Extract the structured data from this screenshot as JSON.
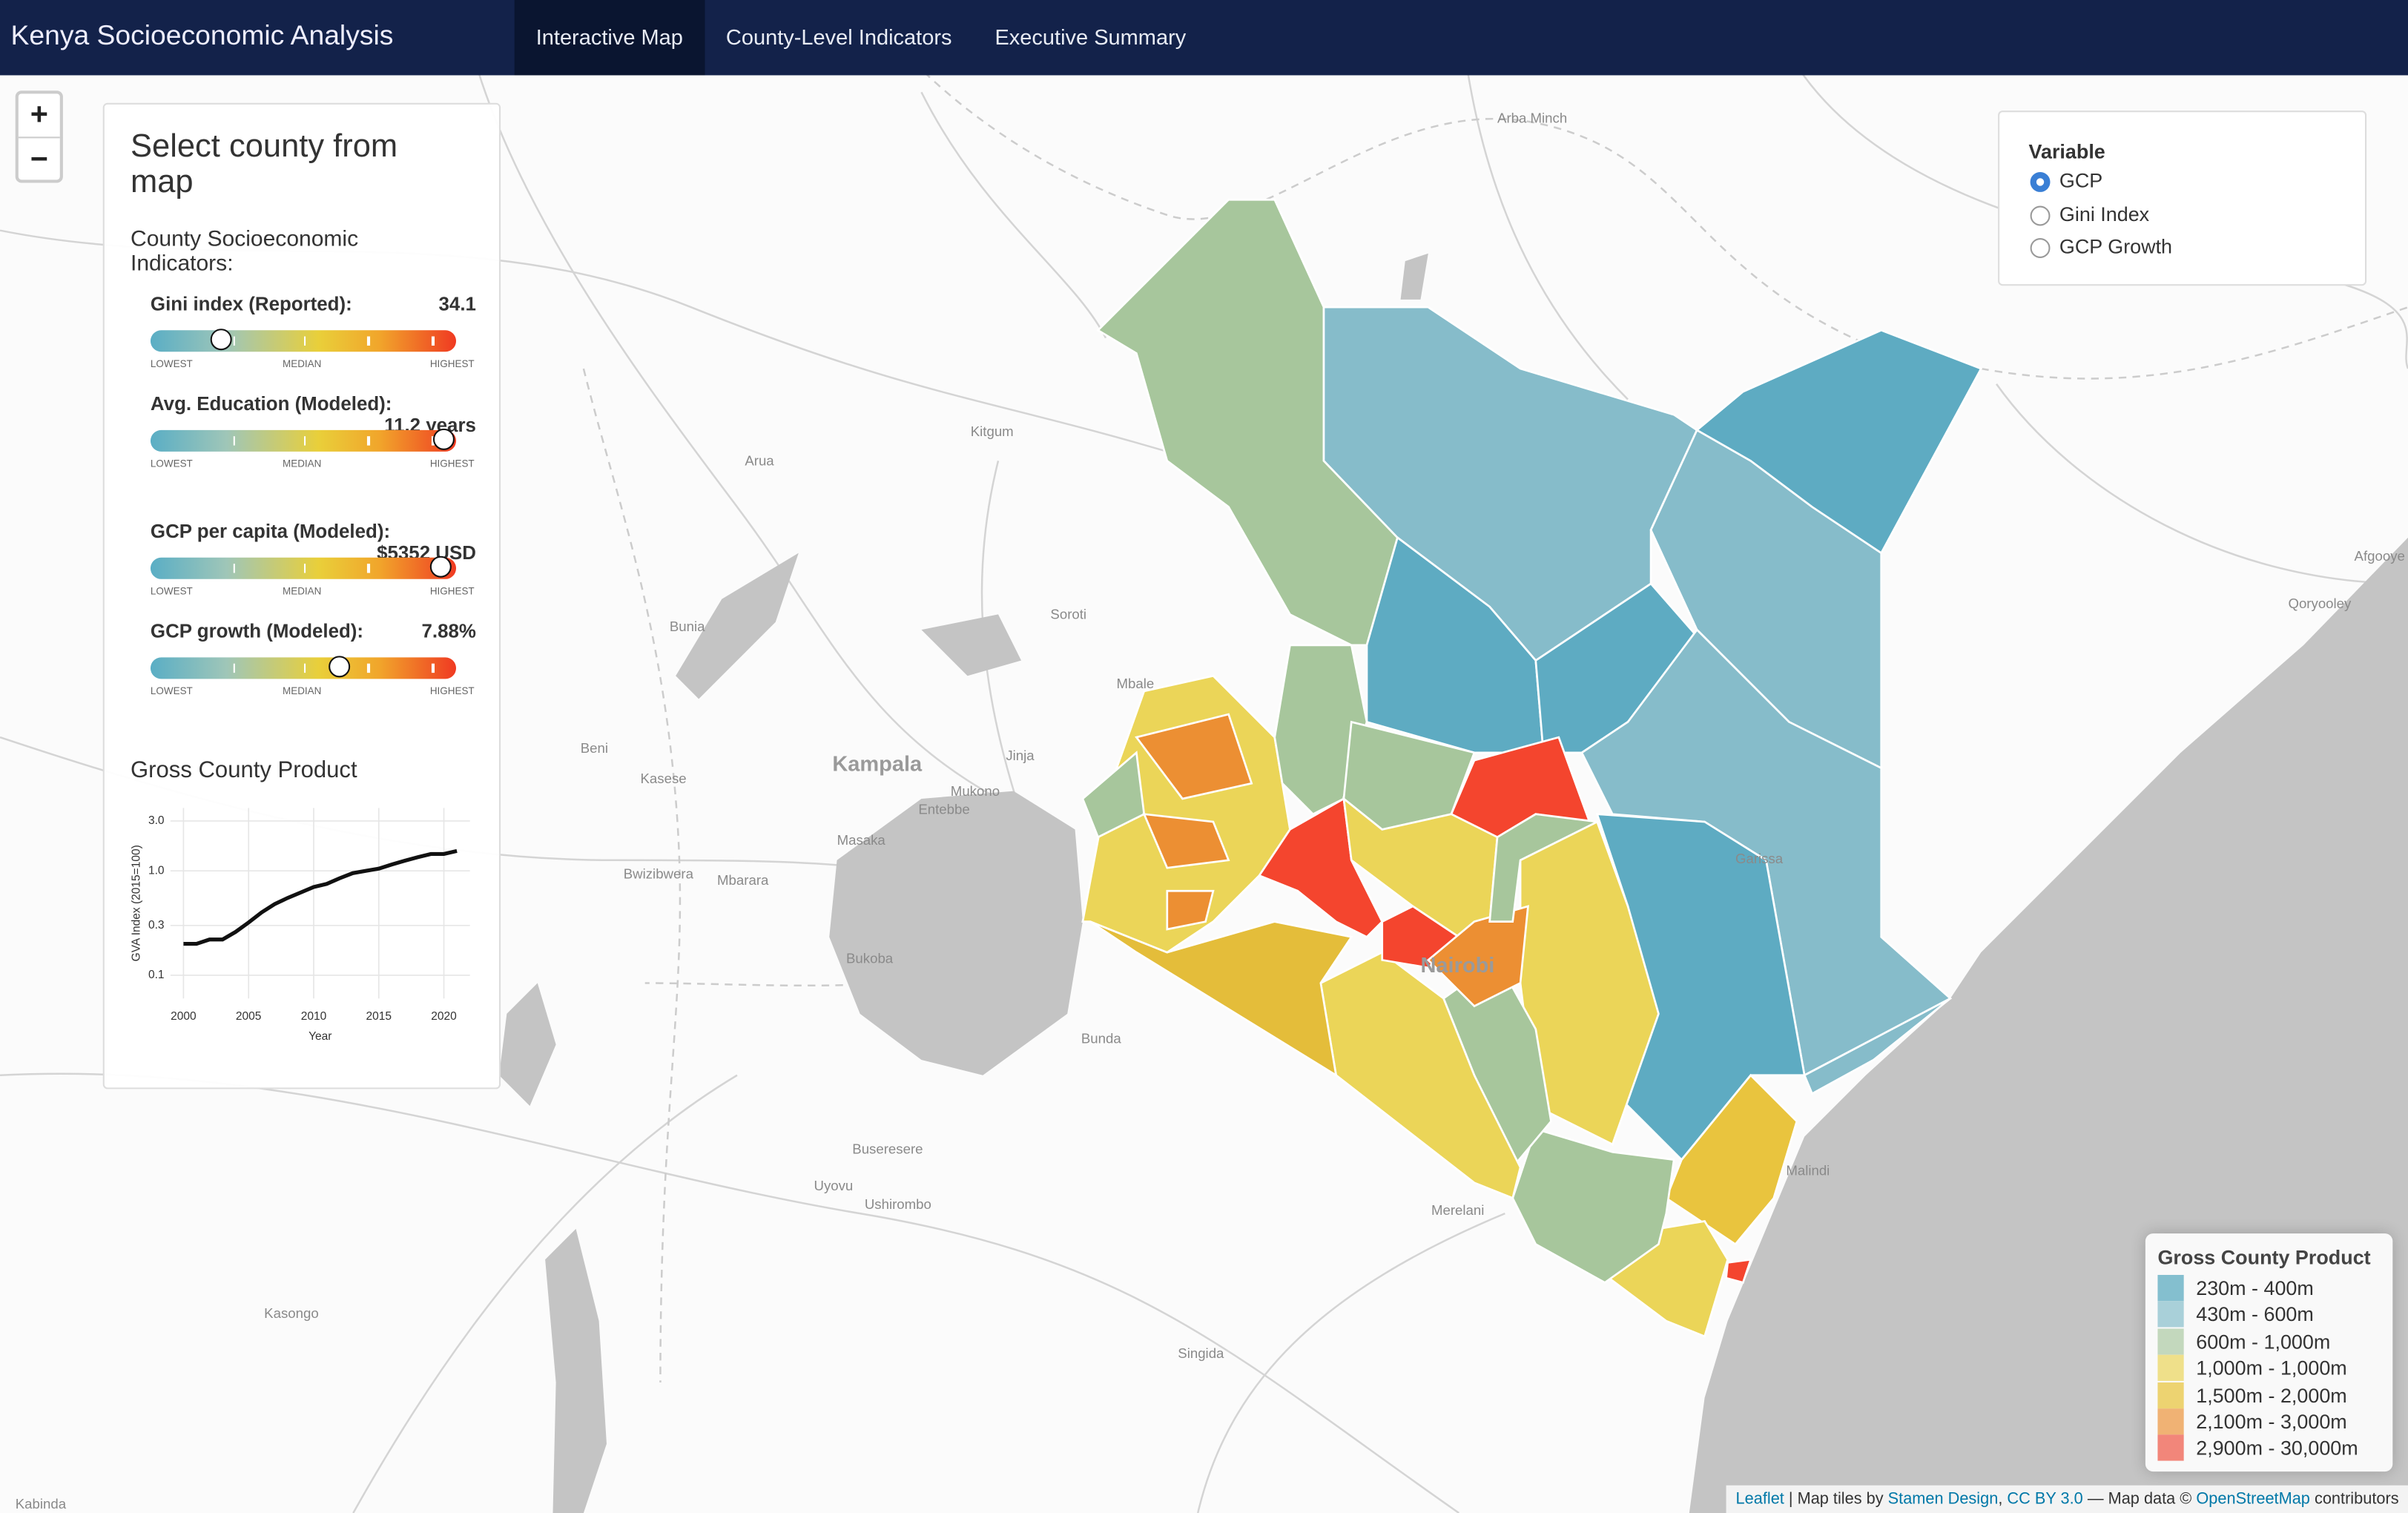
{
  "nav": {
    "brand": "Kenya Socioeconomic Analysis",
    "tabs": [
      "Interactive Map",
      "County-Level Indicators",
      "Executive Summary"
    ],
    "active": 0
  },
  "zoom": {
    "in": "+",
    "out": "−"
  },
  "panel": {
    "title": "Select county from map",
    "subtitle": "County Socioeconomic Indicators:",
    "scale_labels": [
      "LOWEST",
      "MEDIAN",
      "HIGHEST"
    ],
    "indicators": [
      {
        "label": "Gini index (Reported):",
        "value": "34.1",
        "marker": 0.23
      },
      {
        "label": "Avg. Education (Modeled):",
        "value": "11.2 years",
        "marker": 0.96
      },
      {
        "label": "GCP per capita (Modeled):",
        "value": "$5352 USD",
        "marker": 0.95
      },
      {
        "label": "GCP growth (Modeled):",
        "value": "7.88%",
        "marker": 0.62
      }
    ]
  },
  "chart_data": {
    "type": "line",
    "title": "Gross County Product",
    "x_label": "Year",
    "y_label": "GVA Index (2015=100)",
    "x": [
      2000,
      2001,
      2002,
      2003,
      2004,
      2005,
      2006,
      2007,
      2008,
      2009,
      2010,
      2011,
      2012,
      2013,
      2014,
      2015,
      2016,
      2017,
      2018,
      2019,
      2020,
      2021
    ],
    "values": [
      0.2,
      0.2,
      0.22,
      0.22,
      0.26,
      0.32,
      0.4,
      0.48,
      0.55,
      0.62,
      0.7,
      0.75,
      0.85,
      0.95,
      1.0,
      1.05,
      1.15,
      1.25,
      1.35,
      1.45,
      1.45,
      1.55
    ],
    "color": "#111111",
    "xlim": [
      1999,
      2022
    ],
    "xticks": [
      2000,
      2005,
      2010,
      2015,
      2020
    ],
    "ylim": [
      0.06,
      4
    ],
    "yticks": [
      0.1,
      0.3,
      {
        "value": 1,
        "label": "1.0"
      },
      {
        "value": 3,
        "label": "3.0"
      }
    ],
    "log_y": true,
    "grid": true
  },
  "variable_control": {
    "title": "Variable",
    "options": [
      "GCP",
      "Gini Index",
      "GCP Growth"
    ],
    "selected": 0
  },
  "legend": {
    "title": "Gross County Product",
    "items": [
      {
        "label": "230m - 400m",
        "color": "#84bfcf"
      },
      {
        "label": "430m - 600m",
        "color": "#a9d0d9"
      },
      {
        "label": "600m - 1,000m",
        "color": "#c3d8bd"
      },
      {
        "label": "1,000m - 1,000m",
        "color": "#efe08a"
      },
      {
        "label": "1,500m - 2,000m",
        "color": "#edd371"
      },
      {
        "label": "2,100m - 3,000m",
        "color": "#f0b274"
      },
      {
        "label": "2,900m - 30,000m",
        "color": "#f2867a"
      }
    ]
  },
  "attribution": [
    "Leaflet",
    "| Map tiles by",
    "Stamen Design",
    ",",
    "CC BY 3.0",
    "— Map data ©",
    "OpenStreetMap",
    "contributors"
  ],
  "places": [
    "Arba Minch",
    "Kitgum",
    "Arua",
    "Soroti",
    "Bunia",
    "Mbale",
    "Beni",
    "Kasese",
    "Kampala",
    "Jinja",
    "Mukono",
    "Entebbe",
    "Masaka",
    "Bwizibwera",
    "Mbarara",
    "Bukoba",
    "Bunda",
    "Buseresere",
    "Uyovu",
    "Ushirombo",
    "Kasongo",
    "Singida",
    "Merelani",
    "Malindi",
    "Afgooye",
    "Qoryooley",
    "Kabinda",
    "Garissa",
    "Nairobi"
  ]
}
